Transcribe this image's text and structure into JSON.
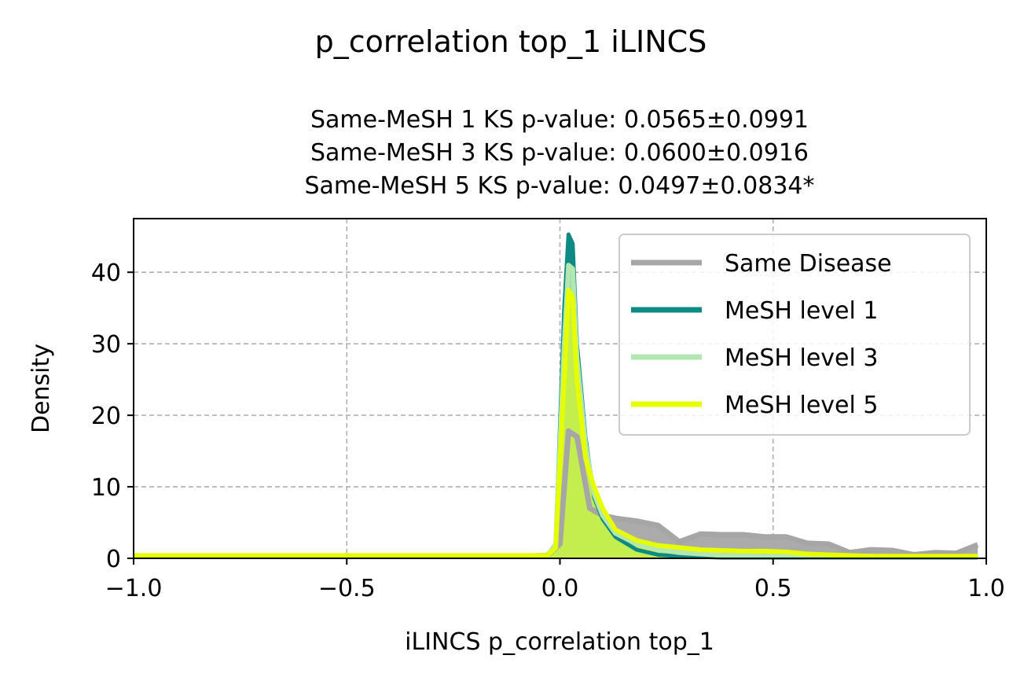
{
  "figure": {
    "suptitle": "p_correlation top_1 iLINCS"
  },
  "chart_data": {
    "type": "area",
    "title_lines": [
      "Same-MeSH 1 KS p-value: 0.0565±0.0991",
      "Same-MeSH 3 KS p-value: 0.0600±0.0916",
      "Same-MeSH 5 KS p-value: 0.0497±0.0834*"
    ],
    "xlabel": "iLINCS p_correlation top_1",
    "ylabel": "Density",
    "xlim": [
      -1.0,
      1.0
    ],
    "ylim": [
      0,
      47.5
    ],
    "xticks": [
      -1.0,
      -0.5,
      0.0,
      0.5,
      1.0
    ],
    "xtick_labels": [
      "−1.0",
      "−0.5",
      "0.0",
      "0.5",
      "1.0"
    ],
    "yticks": [
      0,
      10,
      20,
      30,
      40
    ],
    "ytick_labels": [
      "0",
      "10",
      "20",
      "30",
      "40"
    ],
    "grid": true,
    "legend_position": "top-right",
    "series": [
      {
        "name": "Same Disease",
        "color": "#a6a6a6",
        "x": [
          -1.0,
          -0.08,
          -0.03,
          0.0,
          0.02,
          0.04,
          0.07,
          0.1,
          0.13,
          0.18,
          0.23,
          0.28,
          0.33,
          0.38,
          0.43,
          0.48,
          0.53,
          0.58,
          0.63,
          0.68,
          0.73,
          0.78,
          0.83,
          0.88,
          0.93,
          0.98
        ],
        "y": [
          0.3,
          0.3,
          0.4,
          2.0,
          17.8,
          17.0,
          7.0,
          6.0,
          5.6,
          5.2,
          4.6,
          2.3,
          3.4,
          3.3,
          3.3,
          3.0,
          3.0,
          2.1,
          2.0,
          0.8,
          1.2,
          1.1,
          0.5,
          0.8,
          0.7,
          1.9
        ]
      },
      {
        "name": "MeSH level 1",
        "color": "#0e8a85",
        "x": [
          -1.0,
          -0.08,
          -0.03,
          -0.01,
          0.01,
          0.02,
          0.03,
          0.04,
          0.06,
          0.08,
          0.1,
          0.13,
          0.18,
          0.23,
          0.28,
          0.33,
          0.38,
          0.43,
          0.48,
          0.53,
          0.58,
          0.63,
          0.68,
          0.73,
          0.78,
          0.83,
          0.88,
          0.93,
          0.98
        ],
        "y": [
          0.3,
          0.3,
          0.3,
          2.0,
          35.0,
          45.3,
          44.0,
          30.0,
          17.0,
          8.5,
          5.5,
          3.0,
          1.2,
          0.5,
          0.3,
          0.2,
          0.1,
          0.1,
          0.1,
          0.1,
          0.1,
          0.1,
          0.1,
          0.1,
          0.1,
          0.1,
          0.1,
          0.1,
          0.1
        ]
      },
      {
        "name": "MeSH level 3",
        "color": "#b3e6b0",
        "x": [
          -1.0,
          -0.08,
          -0.03,
          -0.01,
          0.01,
          0.02,
          0.03,
          0.04,
          0.06,
          0.08,
          0.1,
          0.13,
          0.18,
          0.23,
          0.28,
          0.33,
          0.38,
          0.43,
          0.48,
          0.53,
          0.58,
          0.63,
          0.68,
          0.73,
          0.78,
          0.83,
          0.88,
          0.93,
          0.98
        ],
        "y": [
          0.3,
          0.3,
          0.3,
          2.0,
          30.0,
          41.0,
          40.5,
          28.0,
          16.0,
          9.0,
          6.0,
          3.5,
          2.0,
          1.2,
          0.8,
          0.6,
          0.4,
          0.4,
          0.3,
          0.3,
          0.2,
          0.2,
          0.2,
          0.2,
          0.2,
          0.2,
          0.2,
          0.2,
          0.2
        ]
      },
      {
        "name": "MeSH level 5",
        "color": "#e6ff00",
        "x": [
          -1.0,
          -0.08,
          -0.03,
          -0.01,
          0.01,
          0.02,
          0.03,
          0.04,
          0.06,
          0.08,
          0.1,
          0.13,
          0.18,
          0.23,
          0.28,
          0.33,
          0.38,
          0.43,
          0.48,
          0.53,
          0.58,
          0.63,
          0.68,
          0.73,
          0.78,
          0.83,
          0.88,
          0.93,
          0.98
        ],
        "y": [
          0.4,
          0.4,
          0.4,
          1.5,
          25.0,
          37.5,
          36.5,
          25.0,
          14.0,
          10.0,
          7.0,
          4.0,
          2.5,
          1.8,
          1.5,
          1.2,
          1.1,
          1.0,
          1.0,
          0.9,
          0.6,
          0.5,
          0.4,
          0.3,
          0.3,
          0.3,
          0.3,
          0.3,
          0.3
        ]
      }
    ]
  }
}
